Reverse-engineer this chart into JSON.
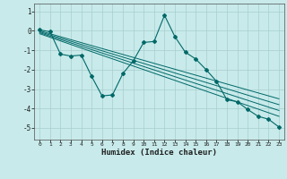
{
  "xlabel": "Humidex (Indice chaleur)",
  "background_color": "#c8eaea",
  "line_color": "#006868",
  "grid_color": "#a8cece",
  "xlim": [
    -0.5,
    23.5
  ],
  "ylim": [
    -5.6,
    1.4
  ],
  "xticks": [
    0,
    1,
    2,
    3,
    4,
    5,
    6,
    7,
    8,
    9,
    10,
    11,
    12,
    13,
    14,
    15,
    16,
    17,
    18,
    19,
    20,
    21,
    22,
    23
  ],
  "yticks": [
    1,
    0,
    -1,
    -2,
    -3,
    -4,
    -5
  ],
  "main_x": [
    0,
    1,
    2,
    3,
    4,
    5,
    6,
    7,
    8,
    9,
    10,
    11,
    12,
    13,
    14,
    15,
    16,
    17,
    18,
    19,
    20,
    21,
    22,
    23
  ],
  "main_y": [
    0.05,
    -0.05,
    -1.2,
    -1.3,
    -1.25,
    -2.35,
    -3.35,
    -3.3,
    -2.2,
    -1.55,
    -0.6,
    -0.55,
    0.8,
    -0.3,
    -1.1,
    -1.45,
    -2.0,
    -2.6,
    -3.55,
    -3.65,
    -4.05,
    -4.4,
    -4.55,
    -4.95
  ],
  "trend_lines": [
    [
      0.0,
      -3.5
    ],
    [
      -0.05,
      -3.8
    ],
    [
      -0.1,
      -4.1
    ],
    [
      -0.15,
      -4.4
    ]
  ]
}
